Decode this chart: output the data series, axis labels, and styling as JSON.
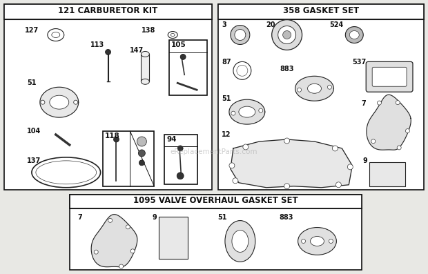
{
  "bg_color": "#e8e8e4",
  "panel_bg": "#ffffff",
  "border_color": "#111111",
  "text_color": "#111111",
  "watermark": "eReplacementParts.com",
  "carb_title": "121 CARBURETOR KIT",
  "gasket_title": "358 GASKET SET",
  "valve_title": "1095 VALVE OVERHAUL GASKET SET"
}
